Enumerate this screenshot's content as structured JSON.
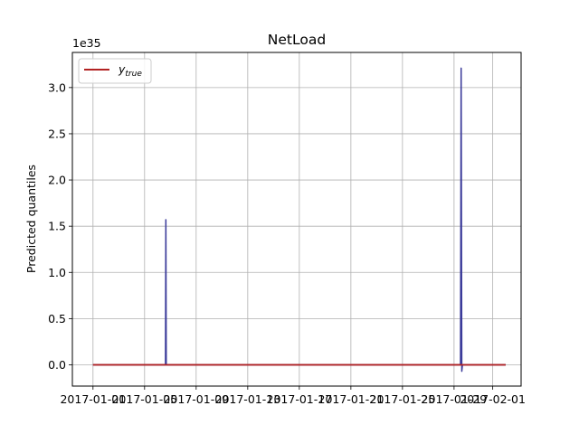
{
  "chart_data": {
    "type": "line",
    "title": "NetLoad",
    "xlabel": "",
    "ylabel": "Predicted quantiles",
    "y_offset_text": "1e35",
    "x_tick_labels": [
      "2017-01-01",
      "2017-01-05",
      "2017-01-09",
      "2017-01-13",
      "2017-01-17",
      "2017-01-21",
      "2017-01-25",
      "2017-01-29",
      "2017-02-01"
    ],
    "x_ticks_day": [
      0,
      4,
      8,
      12,
      16,
      20,
      24,
      28,
      31
    ],
    "xlim_day": [
      -1.6,
      33.2
    ],
    "y_ticks": [
      0.0,
      0.5,
      1.0,
      1.5,
      2.0,
      2.5,
      3.0
    ],
    "y_tick_labels": [
      "0.0",
      "0.5",
      "1.0",
      "1.5",
      "2.0",
      "2.5",
      "3.0"
    ],
    "ylim": [
      -0.23,
      3.38
    ],
    "grid": true,
    "legend": {
      "position": "top-left",
      "entries": [
        {
          "label": "y",
          "subscript": "true",
          "color": "#b22222"
        }
      ]
    },
    "colors": {
      "y_true": "#b22222",
      "quantiles": "#3b3b9a"
    },
    "series": [
      {
        "name": "y_true",
        "color": "#b22222",
        "points": [
          [
            0,
            0.0
          ],
          [
            32,
            0.0
          ]
        ]
      },
      {
        "color": "#3b3b9a",
        "points": [
          [
            0,
            0.0
          ],
          [
            5.62,
            0.0
          ],
          [
            5.65,
            1.57
          ],
          [
            5.68,
            0.0
          ],
          [
            28.5,
            0.0
          ],
          [
            28.55,
            3.21
          ],
          [
            28.6,
            -0.07
          ],
          [
            28.65,
            0.0
          ],
          [
            32,
            0.0
          ]
        ]
      }
    ]
  }
}
